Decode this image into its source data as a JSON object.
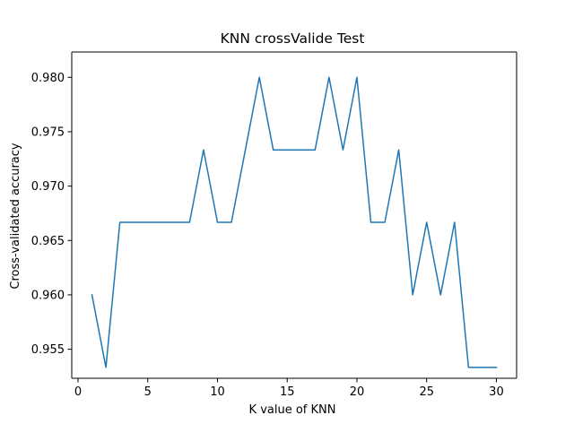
{
  "chart_data": {
    "type": "line",
    "title": "KNN crossValide Test",
    "xlabel": "K value of KNN",
    "ylabel": "Cross-validated accuracy",
    "xlim": [
      -0.45,
      31.45
    ],
    "ylim": [
      0.95233,
      0.98233
    ],
    "xticks": [
      0,
      5,
      10,
      15,
      20,
      25,
      30
    ],
    "yticks": [
      0.955,
      0.96,
      0.965,
      0.97,
      0.975,
      0.98
    ],
    "ytick_labels": [
      "0.955",
      "0.960",
      "0.965",
      "0.970",
      "0.975",
      "0.980"
    ],
    "grid": false,
    "series": [
      {
        "color": "#1f77b4",
        "x": [
          1,
          2,
          3,
          4,
          5,
          6,
          7,
          8,
          9,
          10,
          11,
          12,
          13,
          14,
          15,
          16,
          17,
          18,
          19,
          20,
          21,
          22,
          23,
          24,
          25,
          26,
          27,
          28,
          29,
          30
        ],
        "y": [
          0.96,
          0.95333,
          0.96667,
          0.96667,
          0.96667,
          0.96667,
          0.96667,
          0.96667,
          0.97333,
          0.96667,
          0.96667,
          0.97333,
          0.98,
          0.97333,
          0.97333,
          0.97333,
          0.97333,
          0.98,
          0.97333,
          0.98,
          0.96667,
          0.96667,
          0.97333,
          0.96,
          0.96667,
          0.96,
          0.96667,
          0.95333,
          0.95333,
          0.95333
        ]
      }
    ]
  }
}
